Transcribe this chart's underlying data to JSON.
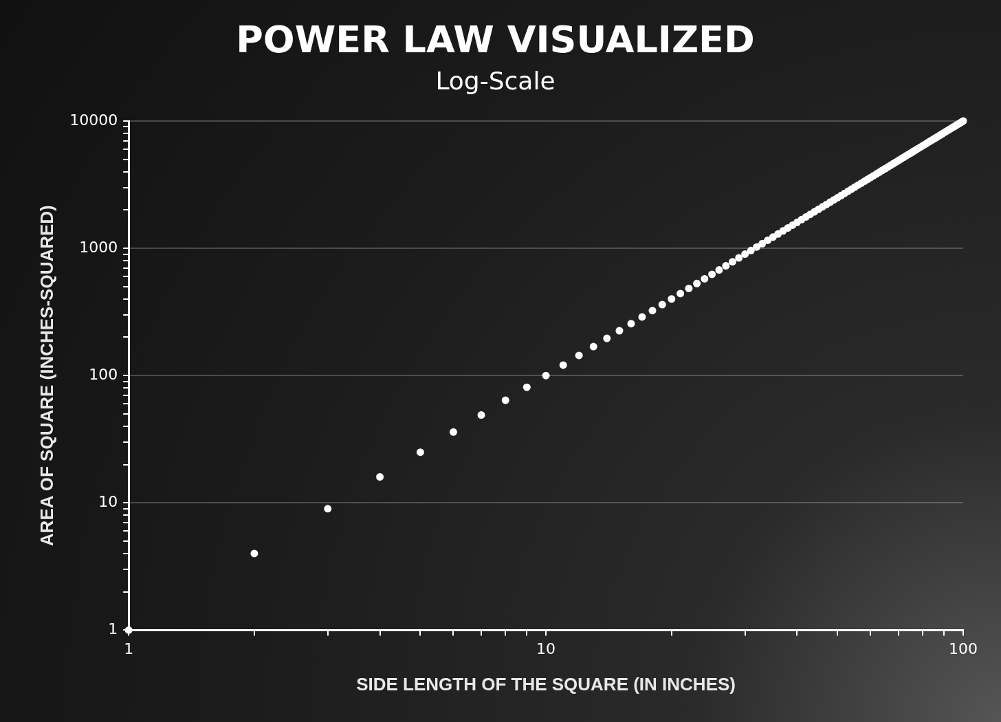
{
  "chart_data": {
    "type": "scatter",
    "title": "POWER LAW VISUALIZED",
    "subtitle": "Log-Scale",
    "xlabel": "SIDE LENGTH OF THE SQUARE (IN INCHES)",
    "ylabel": "AREA OF SQUARE (INCHES-SQUARED)",
    "x": [
      1,
      2,
      3,
      4,
      5,
      6,
      7,
      8,
      9,
      10,
      11,
      12,
      13,
      14,
      15,
      16,
      17,
      18,
      19,
      20,
      21,
      22,
      23,
      24,
      25,
      26,
      27,
      28,
      29,
      30,
      31,
      32,
      33,
      34,
      35,
      36,
      37,
      38,
      39,
      40,
      41,
      42,
      43,
      44,
      45,
      46,
      47,
      48,
      49,
      50,
      51,
      52,
      53,
      54,
      55,
      56,
      57,
      58,
      59,
      60,
      61,
      62,
      63,
      64,
      65,
      66,
      67,
      68,
      69,
      70,
      71,
      72,
      73,
      74,
      75,
      76,
      77,
      78,
      79,
      80,
      81,
      82,
      83,
      84,
      85,
      86,
      87,
      88,
      89,
      90,
      91,
      92,
      93,
      94,
      95,
      96,
      97,
      98,
      99,
      100
    ],
    "series": [
      {
        "color": "#ffffff",
        "values": [
          1,
          4,
          9,
          16,
          25,
          36,
          49,
          64,
          81,
          100,
          121,
          144,
          169,
          196,
          225,
          256,
          289,
          324,
          361,
          400,
          441,
          484,
          529,
          576,
          625,
          676,
          729,
          784,
          841,
          900,
          961,
          1024,
          1089,
          1156,
          1225,
          1296,
          1369,
          1444,
          1521,
          1600,
          1681,
          1764,
          1849,
          1936,
          2025,
          2116,
          2209,
          2304,
          2401,
          2500,
          2601,
          2704,
          2809,
          2916,
          3025,
          3136,
          3249,
          3364,
          3481,
          3600,
          3721,
          3844,
          3969,
          4096,
          4225,
          4356,
          4489,
          4624,
          4761,
          4900,
          5041,
          5184,
          5329,
          5476,
          5625,
          5776,
          5929,
          6084,
          6241,
          6400,
          6561,
          6724,
          6889,
          7056,
          7225,
          7396,
          7569,
          7744,
          7921,
          8100,
          8281,
          8464,
          8649,
          8836,
          9025,
          9216,
          9409,
          9604,
          9801,
          10000
        ]
      }
    ],
    "log": "xy",
    "xlim": [
      1,
      100
    ],
    "ylim": [
      1,
      10000
    ],
    "xticks": [
      1,
      {
        "value": 2,
        "label": null
      },
      {
        "value": 3,
        "label": null
      },
      {
        "value": 4,
        "label": null
      },
      {
        "value": 5,
        "label": null
      },
      {
        "value": 6,
        "label": null
      },
      {
        "value": 7,
        "label": null
      },
      {
        "value": 8,
        "label": null
      },
      {
        "value": 9,
        "label": null
      },
      10,
      {
        "value": 20,
        "label": null
      },
      {
        "value": 30,
        "label": null
      },
      {
        "value": 40,
        "label": null
      },
      {
        "value": 50,
        "label": null
      },
      {
        "value": 60,
        "label": null
      },
      {
        "value": 70,
        "label": null
      },
      {
        "value": 80,
        "label": null
      },
      {
        "value": 90,
        "label": null
      },
      100
    ],
    "yticks": [
      1,
      {
        "value": 2,
        "label": null
      },
      {
        "value": 3,
        "label": null
      },
      {
        "value": 4,
        "label": null
      },
      {
        "value": 5,
        "label": null
      },
      {
        "value": 6,
        "label": null
      },
      {
        "value": 7,
        "label": null
      },
      {
        "value": 8,
        "label": null
      },
      {
        "value": 9,
        "label": null
      },
      10,
      {
        "value": 20,
        "label": null
      },
      {
        "value": 30,
        "label": null
      },
      {
        "value": 40,
        "label": null
      },
      {
        "value": 50,
        "label": null
      },
      {
        "value": 60,
        "label": null
      },
      {
        "value": 70,
        "label": null
      },
      {
        "value": 80,
        "label": null
      },
      {
        "value": 90,
        "label": null
      },
      100,
      {
        "value": 200,
        "label": null
      },
      {
        "value": 300,
        "label": null
      },
      {
        "value": 400,
        "label": null
      },
      {
        "value": 500,
        "label": null
      },
      {
        "value": 600,
        "label": null
      },
      {
        "value": 700,
        "label": null
      },
      {
        "value": 800,
        "label": null
      },
      {
        "value": 900,
        "label": null
      },
      1000,
      {
        "value": 2000,
        "label": null
      },
      {
        "value": 3000,
        "label": null
      },
      {
        "value": 4000,
        "label": null
      },
      {
        "value": 5000,
        "label": null
      },
      {
        "value": 6000,
        "label": null
      },
      {
        "value": 7000,
        "label": null
      },
      {
        "value": 8000,
        "label": null
      },
      {
        "value": 9000,
        "label": null
      },
      10000
    ],
    "grid": "y",
    "legend": false,
    "marker": "circle"
  }
}
